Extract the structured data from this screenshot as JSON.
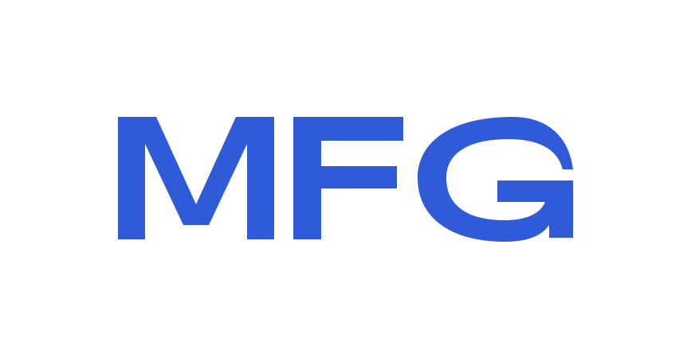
{
  "logo": {
    "text": "MFG",
    "color": "#2F5BD9"
  },
  "background_color": "#FFFFFF"
}
